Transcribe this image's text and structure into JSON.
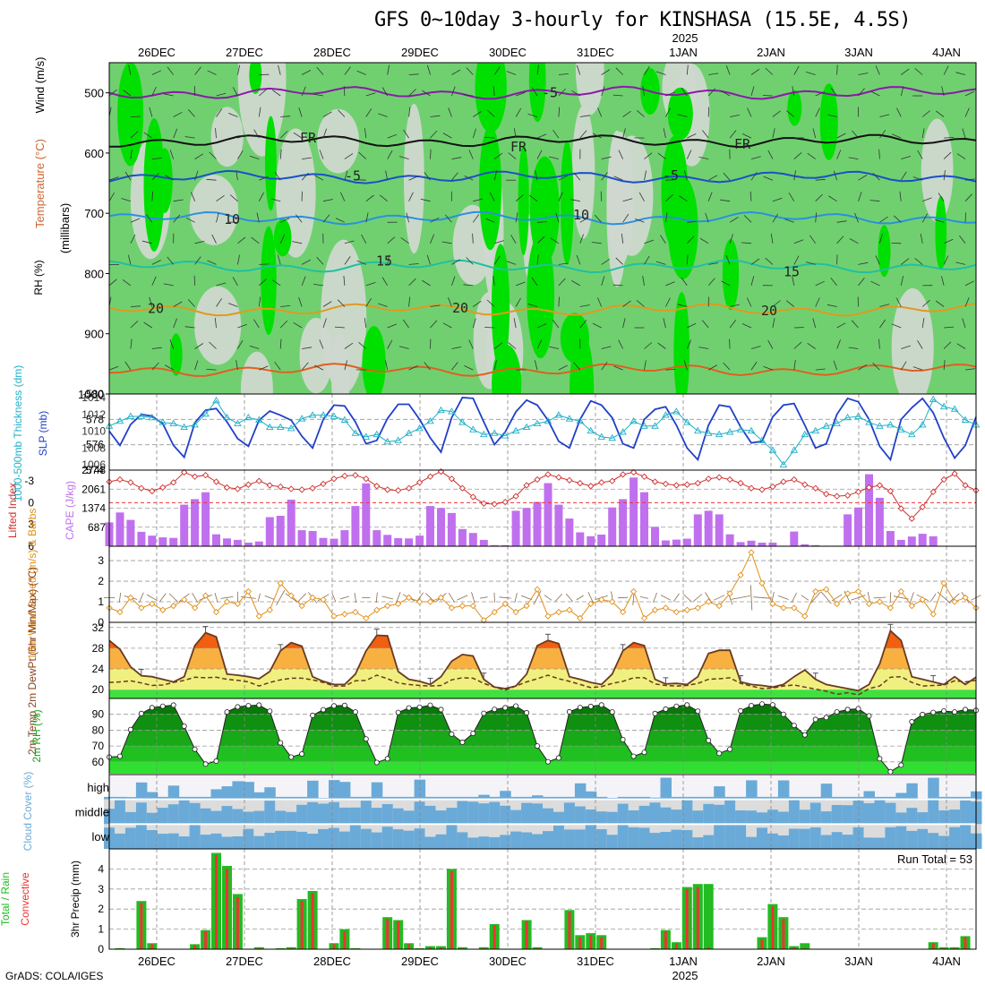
{
  "title": "GFS 0~10day 3-hourly for KINSHASA (15.5E, 4.5S)",
  "credit": "GrADS: COLA/IGES",
  "colors": {
    "rh_light": "#cfd8cf",
    "rh_mid": "#70d070",
    "rh_high": "#00e000",
    "rain_green": "#22bb22",
    "conv_red": "#ee3333",
    "cape_bar": "#c070ee",
    "slp_line": "#2040c8",
    "thick_line": "#20b0c8",
    "cloud_blue": "#6aaad8",
    "cloud_grey": "#dcdcdc",
    "wind_line": "#e0901a"
  },
  "chart_data": [
    {
      "name": "upper-air",
      "type": "heatmap",
      "ylabel_parts": [
        "RH (%)",
        "Temperature (°C)",
        "Wind (m/s)"
      ],
      "yunit": "(millibars)",
      "yticks": [
        500,
        600,
        700,
        800,
        900,
        1000
      ],
      "ylim": [
        1000,
        450
      ],
      "x_top_labels": [
        "26DEC",
        "27DEC",
        "28DEC",
        "29DEC",
        "30DEC",
        "31DEC",
        "1JAN",
        "2JAN",
        "3JAN",
        "4JAN"
      ],
      "year_label": "2025",
      "isotherm_labels": [
        {
          "text": "-5",
          "p": 500
        },
        {
          "text": "FR",
          "p": 575
        },
        {
          "text": "FR",
          "p": 590
        },
        {
          "text": "FR",
          "p": 585
        },
        {
          "text": "-5",
          "p": 638
        },
        {
          "text": "-5",
          "p": 637
        },
        {
          "text": "10",
          "p": 710
        },
        {
          "text": "10",
          "p": 703
        },
        {
          "text": "15",
          "p": 779
        },
        {
          "text": "15",
          "p": 797
        },
        {
          "text": "20",
          "p": 858
        },
        {
          "text": "20",
          "p": 857
        },
        {
          "text": "20",
          "p": 862
        }
      ]
    },
    {
      "name": "thickness-slp",
      "type": "line",
      "ylabel_left": "1000-500mb Thickness (dm)",
      "ylabel_right": "SLP (mb)",
      "yticks_left": [
        574,
        576,
        578,
        580
      ],
      "yticks_right": [
        1006,
        1008,
        1010,
        1012,
        1014
      ],
      "series": [
        {
          "name": "SLP (mb)",
          "values": [
            1010.0,
            1008.3,
            1010.8,
            1012.0,
            1011.8,
            1010.9,
            1008.3,
            1006.9,
            1011.0,
            1012.5,
            1012.7,
            1011.1,
            1009.1,
            1008.2,
            1011.3,
            1012.4,
            1011.9,
            1011.3,
            1009.4,
            1008.0,
            1011.4,
            1013.1,
            1013.0,
            1011.1,
            1008.5,
            1008.9,
            1011.5,
            1013.2,
            1013.2,
            1011.4,
            1009.2,
            1007.5,
            1011.6,
            1014.0,
            1013.9,
            1011.1,
            1008.4,
            1009.9,
            1012.3,
            1013.7,
            1013.1,
            1011.3,
            1008.8,
            1008.0,
            1011.4,
            1013.6,
            1013.1,
            1011.6,
            1008.5,
            1008.0,
            1011.4,
            1012.6,
            1012.9,
            1010.7,
            1008.0,
            1006.6,
            1010.7,
            1013.1,
            1012.9,
            1010.5,
            1008.6,
            1008.8,
            1011.7,
            1013.1,
            1013.3,
            1010.7,
            1008.0,
            1008.5,
            1012.0,
            1013.9,
            1013.5,
            1011.4,
            1008.2,
            1006.6,
            1011.4,
            1012.8,
            1013.9,
            1012.2,
            1009.2,
            1006.8,
            1008.3,
            1011.7
          ]
        },
        {
          "name": "Thickness (dm)",
          "values": [
            577.5,
            577.9,
            578.3,
            578.3,
            578.2,
            577.8,
            577.7,
            577.4,
            577.6,
            578.5,
            579.6,
            578.2,
            577.7,
            578.2,
            578.0,
            577.4,
            577.4,
            577.3,
            578.1,
            578.4,
            578.4,
            578.3,
            578.0,
            576.9,
            576.6,
            576.8,
            576.2,
            576.3,
            576.9,
            577.3,
            577.9,
            578.8,
            578.7,
            577.8,
            577.2,
            576.8,
            576.9,
            576.7,
            577.1,
            577.4,
            577.7,
            577.9,
            578.4,
            578.1,
            577.9,
            577.1,
            576.6,
            576.5,
            577.0,
            577.9,
            577.5,
            577.5,
            578.4,
            578.7,
            577.8,
            577.1,
            576.9,
            576.8,
            577.0,
            577.2,
            577.1,
            576.3,
            575.5,
            574.3,
            575.5,
            576.8,
            577.1,
            577.5,
            577.7,
            578.2,
            578.3,
            577.8,
            577.5,
            577.6,
            577.2,
            576.8,
            577.6,
            579.7,
            579.1,
            578.9,
            578.0,
            577.6
          ]
        }
      ]
    },
    {
      "name": "cape-li",
      "type": "bar",
      "ylabel_left": "Lifted Index",
      "ylabel_right": "CAPE (J/kg)",
      "yticks_left": [
        "-3",
        "0",
        "3",
        "6"
      ],
      "yticks_right": [
        687,
        1374,
        2061,
        2748
      ],
      "series": [
        {
          "name": "CAPE (J/kg)",
          "values": [
            860,
            1220,
            950,
            520,
            380,
            320,
            300,
            1500,
            1700,
            1950,
            430,
            280,
            230,
            130,
            170,
            1050,
            1100,
            1680,
            580,
            550,
            300,
            270,
            580,
            1450,
            2270,
            580,
            410,
            290,
            280,
            380,
            1450,
            1380,
            1200,
            620,
            480,
            230,
            40,
            40,
            1280,
            1380,
            1600,
            2280,
            1500,
            1000,
            500,
            360,
            420,
            1400,
            1700,
            2480,
            1950,
            700,
            210,
            240,
            270,
            1150,
            1280,
            1150,
            430,
            150,
            200,
            130,
            130,
            20,
            530,
            70,
            40,
            20,
            20,
            1150,
            1400,
            2600,
            1750,
            550,
            230,
            350,
            450,
            360
          ]
        },
        {
          "name": "Lifted Index",
          "values": [
            -2.9,
            -3.2,
            -2.8,
            -2.0,
            -1.6,
            -2.1,
            -2.8,
            -4.2,
            -3.6,
            -3.8,
            -2.9,
            -2.1,
            -1.9,
            -2.5,
            -3.0,
            -2.4,
            -2.2,
            -1.9,
            -1.8,
            -2.0,
            -2.6,
            -3.3,
            -3.7,
            -3.8,
            -3.3,
            -2.3,
            -1.8,
            -1.7,
            -2.0,
            -2.8,
            -3.6,
            -4.3,
            -3.3,
            -2.0,
            -0.8,
            0.1,
            0.2,
            -0.1,
            -0.9,
            -2.4,
            -3.2,
            -3.9,
            -3.5,
            -3.1,
            -2.7,
            -2.3,
            -2.8,
            -3.0,
            -3.9,
            -4.2,
            -3.6,
            -2.9,
            -2.6,
            -2.4,
            -2.5,
            -2.7,
            -3.3,
            -3.5,
            -3.2,
            -2.7,
            -2.0,
            -1.8,
            -2.2,
            -2.9,
            -3.2,
            -2.5,
            -2.0,
            -1.2,
            -0.9,
            -1.0,
            -1.5,
            -2.1,
            -2.4,
            -1.6,
            0.8,
            2.2,
            0.6,
            -1.5,
            -3.2,
            -4.0,
            -2.4,
            -1.7
          ]
        }
      ]
    },
    {
      "name": "wind10m",
      "type": "line",
      "ylabel": "10m Wind Speed (m/s) & Barbs",
      "yticks": [
        0,
        1,
        2,
        3
      ],
      "series": [
        {
          "name": "10m Wind Speed",
          "values": [
            0.7,
            0.5,
            1.2,
            0.7,
            0.9,
            0.6,
            0.8,
            1.1,
            0.7,
            1.3,
            0.5,
            1.0,
            0.9,
            1.5,
            0.3,
            0.6,
            1.9,
            1.3,
            0.8,
            1.2,
            1.1,
            0.3,
            0.4,
            0.5,
            0.2,
            0.6,
            0.8,
            0.9,
            1.2,
            1.0,
            1.0,
            1.2,
            0.7,
            0.8,
            0.8,
            0.1,
            0.5,
            0.9,
            0.5,
            0.8,
            1.6,
            0.3,
            0.5,
            0.6,
            0.2,
            0.9,
            1.1,
            1.0,
            0.5,
            1.5,
            0.2,
            0.6,
            0.7,
            0.5,
            0.6,
            0.7,
            1.0,
            0.8,
            1.4,
            2.3,
            3.4,
            1.9,
            0.9,
            0.7,
            0.7,
            0.3,
            1.5,
            1.6,
            0.9,
            1.4,
            1.5,
            0.9,
            1.0,
            0.7,
            1.5,
            0.8,
            1.1,
            0.4,
            1.9,
            1.0,
            1.2,
            0.7
          ]
        }
      ]
    },
    {
      "name": "temperature",
      "type": "area",
      "ylabel": "2m Temp 2m DewPt (6hr Min/Max) (°C)",
      "yticks": [
        20,
        24,
        28,
        32
      ],
      "series": [
        {
          "name": "2m Temp",
          "values": [
            29.5,
            27.8,
            24.4,
            22.7,
            22.5,
            22.0,
            21.5,
            22.5,
            28.5,
            31.0,
            30.2,
            23.0,
            22.8,
            22.5,
            22.1,
            23.5,
            27.5,
            29.1,
            28.4,
            22.5,
            21.6,
            21.0,
            21.0,
            23.0,
            27.5,
            30.5,
            30.4,
            23.5,
            22.0,
            21.6,
            21.0,
            22.5,
            25.5,
            26.8,
            26.5,
            22.0,
            20.5,
            20.2,
            20.7,
            23.0,
            28.5,
            29.5,
            28.9,
            22.5,
            22.0,
            21.4,
            21.0,
            23.0,
            27.5,
            29.1,
            28.5,
            22.0,
            21.1,
            21.2,
            21.0,
            22.5,
            27.0,
            27.6,
            27.6,
            21.5,
            21.0,
            20.8,
            20.5,
            21.0,
            22.5,
            23.8,
            22.0,
            21.0,
            20.6,
            20.2,
            19.8,
            21.0,
            25.0,
            31.4,
            29.5,
            22.5,
            22.0,
            21.5,
            21.0,
            22.5,
            21.0,
            22.4
          ]
        },
        {
          "name": "2m DewPt",
          "values": [
            21.4,
            21.5,
            21.7,
            21.3,
            20.8,
            20.9,
            21.4,
            21.8,
            22.4,
            22.3,
            22.4,
            22.0,
            21.8,
            21.5,
            20.7,
            21.4,
            21.9,
            22.2,
            22.2,
            21.9,
            21.4,
            20.7,
            20.7,
            21.7,
            21.8,
            22.8,
            22.1,
            21.3,
            21.0,
            20.8,
            20.7,
            20.8,
            21.9,
            22.3,
            22.2,
            21.2,
            20.5,
            19.9,
            20.7,
            21.5,
            22.1,
            22.8,
            22.1,
            21.6,
            21.0,
            20.4,
            20.6,
            21.2,
            21.6,
            22.3,
            22.3,
            21.1,
            20.8,
            20.7,
            20.8,
            21.2,
            22.0,
            22.1,
            22.3,
            21.2,
            20.7,
            20.2,
            20.3,
            20.7,
            20.9,
            20.5,
            20.1,
            19.7,
            19.1,
            19.4,
            19.0,
            20.2,
            20.7,
            22.4,
            22.5,
            21.4,
            20.7,
            20.8,
            20.9,
            21.7,
            21.5,
            21.8
          ]
        }
      ]
    },
    {
      "name": "rh2m",
      "type": "area",
      "ylabel": "2m RH (%)",
      "yticks": [
        60,
        70,
        80,
        90
      ],
      "series": [
        {
          "name": "2m RH",
          "values": [
            63.0,
            63.5,
            80.4,
            90.5,
            94.2,
            95.1,
            95.8,
            82.5,
            68.0,
            58.6,
            60.5,
            91.5,
            94.7,
            95.4,
            95.8,
            92.0,
            72.0,
            63.0,
            65.0,
            89.3,
            92.9,
            95.3,
            95.6,
            91.5,
            74.5,
            59.6,
            62.0,
            91.2,
            94.0,
            94.5,
            95.7,
            93.0,
            77.5,
            72.4,
            78.0,
            90.6,
            93.1,
            94.1,
            95.2,
            91.0,
            70.0,
            60.1,
            62.5,
            91.6,
            94.3,
            95.0,
            95.9,
            91.5,
            74.0,
            63.5,
            66.0,
            90.5,
            93.3,
            95.1,
            95.9,
            92.0,
            73.5,
            65.4,
            68.0,
            92.2,
            95.5,
            96.5,
            96.0,
            90.0,
            83.0,
            77.0,
            86.8,
            88.0,
            91.5,
            93.0,
            93.5,
            89.0,
            62.0,
            53.8,
            58.0,
            85.3,
            89.9,
            91.2,
            92.1,
            91.5,
            93.0,
            92.5
          ]
        }
      ]
    },
    {
      "name": "cloud-cover",
      "type": "heatmap",
      "ylabel": "Cloud Cover (%)",
      "rows": [
        "high",
        "middle",
        "low"
      ]
    },
    {
      "name": "precip",
      "type": "bar",
      "ylabel_left": "Total / Rain",
      "ylabel_left2": "Convective",
      "ylabel": "3hr Precip (mm)",
      "annotation": "Run Total = 53",
      "yticks": [
        0,
        1,
        2,
        3,
        4
      ],
      "x_bottom_labels": [
        "26DEC",
        "27DEC",
        "28DEC",
        "29DEC",
        "30DEC",
        "31DEC",
        "1JAN",
        "2JAN",
        "3JAN",
        "4JAN"
      ],
      "year_label": "2025",
      "series": [
        {
          "name": "Total",
          "values": [
            0,
            0.05,
            0,
            2.4,
            0.3,
            0,
            0,
            0,
            0.25,
            0.95,
            4.8,
            4.15,
            2.75,
            0,
            0.1,
            0,
            0.05,
            0.1,
            2.5,
            2.9,
            0,
            0.3,
            1.0,
            0.05,
            0,
            0,
            1.6,
            1.45,
            0.3,
            0.05,
            0.15,
            0.15,
            4.0,
            0.1,
            0,
            0.1,
            1.25,
            0,
            0,
            1.45,
            0.1,
            0,
            0,
            1.95,
            0.7,
            0.8,
            0.7,
            0,
            0,
            0,
            0,
            0.05,
            0.95,
            0.35,
            3.1,
            3.25,
            3.25,
            0,
            0,
            0,
            0,
            0.6,
            2.25,
            1.6,
            0.15,
            0.3,
            0,
            0,
            0,
            0,
            0,
            0,
            0,
            0,
            0,
            0,
            0,
            0.35,
            0.1,
            0.1,
            0.65,
            0
          ]
        },
        {
          "name": "Convective",
          "values": [
            0,
            0.03,
            0,
            2.3,
            0.25,
            0,
            0,
            0,
            0.2,
            0.9,
            4.7,
            4.0,
            2.6,
            0,
            0.05,
            0,
            0.03,
            0.05,
            2.4,
            2.8,
            0,
            0.25,
            0.9,
            0.03,
            0,
            0,
            1.5,
            1.4,
            0.25,
            0.03,
            0.1,
            0.1,
            3.9,
            0.05,
            0,
            0.05,
            1.2,
            0,
            0,
            1.4,
            0.05,
            0,
            0,
            1.85,
            0.6,
            0.7,
            0.6,
            0,
            0,
            0,
            0,
            0.03,
            0.9,
            0.3,
            3.0,
            3.1,
            0.1,
            0,
            0,
            0,
            0,
            0.5,
            2.15,
            1.5,
            0.1,
            0.05,
            0,
            0,
            0,
            0,
            0,
            0,
            0,
            0,
            0,
            0,
            0,
            0.3,
            0.05,
            0.05,
            0.6,
            0
          ]
        }
      ]
    }
  ]
}
